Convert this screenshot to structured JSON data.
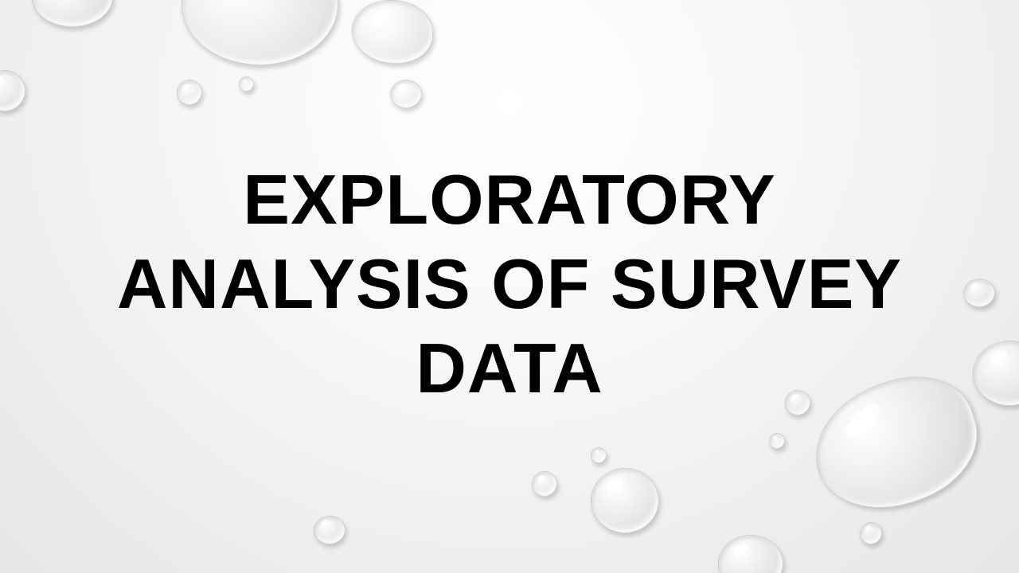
{
  "slide": {
    "title_lines": [
      "EXPLORATORY",
      "ANALYSIS OF SURVEY",
      "DATA"
    ],
    "background": "water-droplets",
    "text_color": "#000000"
  }
}
